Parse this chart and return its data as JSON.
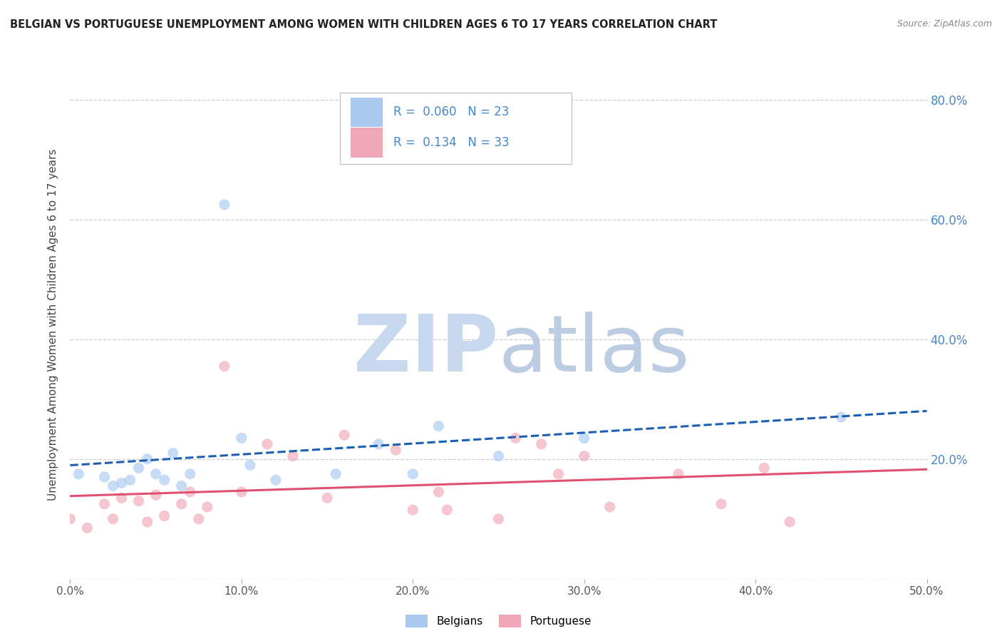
{
  "title": "BELGIAN VS PORTUGUESE UNEMPLOYMENT AMONG WOMEN WITH CHILDREN AGES 6 TO 17 YEARS CORRELATION CHART",
  "source": "Source: ZipAtlas.com",
  "ylabel": "Unemployment Among Women with Children Ages 6 to 17 years",
  "xlim": [
    0.0,
    0.5
  ],
  "ylim": [
    0.0,
    0.85
  ],
  "xticks": [
    0.0,
    0.1,
    0.2,
    0.3,
    0.4,
    0.5
  ],
  "xticklabels": [
    "0.0%",
    "10.0%",
    "20.0%",
    "30.0%",
    "40.0%",
    "50.0%"
  ],
  "yticks": [
    0.0,
    0.2,
    0.4,
    0.6,
    0.8
  ],
  "yticklabels_right": [
    "",
    "20.0%",
    "40.0%",
    "60.0%",
    "80.0%"
  ],
  "belgian_R": 0.06,
  "belgian_N": 23,
  "portuguese_R": 0.134,
  "portuguese_N": 33,
  "belgian_color": "#a8c8f0",
  "portuguese_color": "#f0a8b8",
  "belgian_line_color": "#1a5fb4",
  "portuguese_line_color": "#e05070",
  "tick_color": "#4488cc",
  "legend_label_belgian": "Belgians",
  "legend_label_portuguese": "Portuguese",
  "belgian_x": [
    0.005,
    0.02,
    0.025,
    0.03,
    0.035,
    0.04,
    0.045,
    0.05,
    0.055,
    0.06,
    0.065,
    0.07,
    0.09,
    0.1,
    0.105,
    0.12,
    0.155,
    0.18,
    0.2,
    0.215,
    0.25,
    0.3,
    0.45
  ],
  "belgian_y": [
    0.175,
    0.17,
    0.155,
    0.16,
    0.165,
    0.185,
    0.2,
    0.175,
    0.165,
    0.21,
    0.155,
    0.175,
    0.625,
    0.235,
    0.19,
    0.165,
    0.175,
    0.225,
    0.175,
    0.255,
    0.205,
    0.235,
    0.27
  ],
  "portuguese_x": [
    0.0,
    0.01,
    0.02,
    0.025,
    0.03,
    0.04,
    0.045,
    0.05,
    0.055,
    0.065,
    0.07,
    0.075,
    0.08,
    0.09,
    0.1,
    0.115,
    0.13,
    0.15,
    0.16,
    0.19,
    0.2,
    0.215,
    0.22,
    0.25,
    0.26,
    0.275,
    0.285,
    0.3,
    0.315,
    0.355,
    0.38,
    0.405,
    0.42
  ],
  "portuguese_y": [
    0.1,
    0.085,
    0.125,
    0.1,
    0.135,
    0.13,
    0.095,
    0.14,
    0.105,
    0.125,
    0.145,
    0.1,
    0.12,
    0.355,
    0.145,
    0.225,
    0.205,
    0.135,
    0.24,
    0.215,
    0.115,
    0.145,
    0.115,
    0.1,
    0.235,
    0.225,
    0.175,
    0.205,
    0.12,
    0.175,
    0.125,
    0.185,
    0.095
  ],
  "point_size": 120,
  "point_alpha": 0.65
}
